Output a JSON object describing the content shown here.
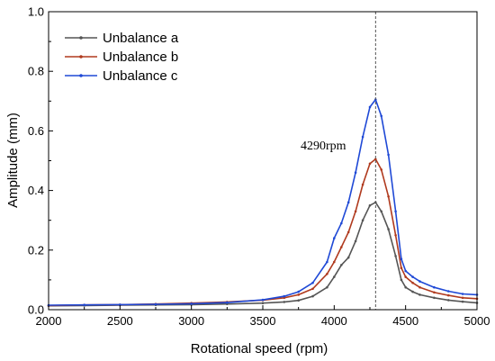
{
  "chart_data": {
    "type": "line",
    "xlabel": "Rotational speed (rpm)",
    "ylabel": "Amplitude (mm)",
    "xlim": [
      2000,
      5000
    ],
    "ylim": [
      0,
      1.0
    ],
    "xticks": [
      2000,
      2500,
      3000,
      3500,
      4000,
      4500,
      5000
    ],
    "yticks": [
      0.0,
      0.2,
      0.4,
      0.6,
      0.8,
      1.0
    ],
    "ytick_labels": [
      "0.0",
      "0.2",
      "0.4",
      "0.6",
      "0.8",
      "1.0"
    ],
    "grid": false,
    "legend_position": "top-left",
    "annotation": {
      "text": "4290rpm",
      "x": 4290
    },
    "series": [
      {
        "name": "Unbalance a",
        "color": "#555555",
        "points": [
          [
            2000,
            0.013
          ],
          [
            2250,
            0.014
          ],
          [
            2500,
            0.015
          ],
          [
            2750,
            0.016
          ],
          [
            3000,
            0.017
          ],
          [
            3250,
            0.019
          ],
          [
            3500,
            0.022
          ],
          [
            3650,
            0.026
          ],
          [
            3750,
            0.031
          ],
          [
            3850,
            0.045
          ],
          [
            3950,
            0.075
          ],
          [
            4000,
            0.11
          ],
          [
            4050,
            0.15
          ],
          [
            4100,
            0.175
          ],
          [
            4150,
            0.23
          ],
          [
            4200,
            0.3
          ],
          [
            4250,
            0.35
          ],
          [
            4290,
            0.36
          ],
          [
            4330,
            0.33
          ],
          [
            4380,
            0.27
          ],
          [
            4430,
            0.18
          ],
          [
            4470,
            0.1
          ],
          [
            4500,
            0.075
          ],
          [
            4550,
            0.06
          ],
          [
            4600,
            0.05
          ],
          [
            4700,
            0.04
          ],
          [
            4800,
            0.032
          ],
          [
            4900,
            0.027
          ],
          [
            5000,
            0.023
          ]
        ]
      },
      {
        "name": "Unbalance b",
        "color": "#b03a1e",
        "points": [
          [
            2000,
            0.014
          ],
          [
            2250,
            0.016
          ],
          [
            2500,
            0.017
          ],
          [
            2750,
            0.019
          ],
          [
            3000,
            0.022
          ],
          [
            3250,
            0.026
          ],
          [
            3500,
            0.032
          ],
          [
            3650,
            0.04
          ],
          [
            3750,
            0.05
          ],
          [
            3850,
            0.07
          ],
          [
            3950,
            0.12
          ],
          [
            4000,
            0.16
          ],
          [
            4050,
            0.21
          ],
          [
            4100,
            0.26
          ],
          [
            4150,
            0.33
          ],
          [
            4200,
            0.42
          ],
          [
            4250,
            0.49
          ],
          [
            4290,
            0.505
          ],
          [
            4330,
            0.47
          ],
          [
            4380,
            0.38
          ],
          [
            4430,
            0.25
          ],
          [
            4470,
            0.14
          ],
          [
            4500,
            0.11
          ],
          [
            4550,
            0.09
          ],
          [
            4600,
            0.075
          ],
          [
            4700,
            0.058
          ],
          [
            4800,
            0.048
          ],
          [
            4900,
            0.04
          ],
          [
            5000,
            0.037
          ]
        ]
      },
      {
        "name": "Unbalance c",
        "color": "#1f49d6",
        "points": [
          [
            2000,
            0.015
          ],
          [
            2250,
            0.016
          ],
          [
            2500,
            0.017
          ],
          [
            2750,
            0.018
          ],
          [
            3000,
            0.02
          ],
          [
            3250,
            0.024
          ],
          [
            3500,
            0.033
          ],
          [
            3650,
            0.045
          ],
          [
            3750,
            0.06
          ],
          [
            3850,
            0.09
          ],
          [
            3950,
            0.16
          ],
          [
            4000,
            0.24
          ],
          [
            4050,
            0.29
          ],
          [
            4100,
            0.36
          ],
          [
            4150,
            0.46
          ],
          [
            4200,
            0.58
          ],
          [
            4250,
            0.68
          ],
          [
            4290,
            0.705
          ],
          [
            4330,
            0.65
          ],
          [
            4380,
            0.52
          ],
          [
            4430,
            0.33
          ],
          [
            4470,
            0.17
          ],
          [
            4500,
            0.13
          ],
          [
            4550,
            0.11
          ],
          [
            4600,
            0.095
          ],
          [
            4700,
            0.075
          ],
          [
            4800,
            0.062
          ],
          [
            4900,
            0.053
          ],
          [
            5000,
            0.05
          ]
        ]
      }
    ]
  }
}
